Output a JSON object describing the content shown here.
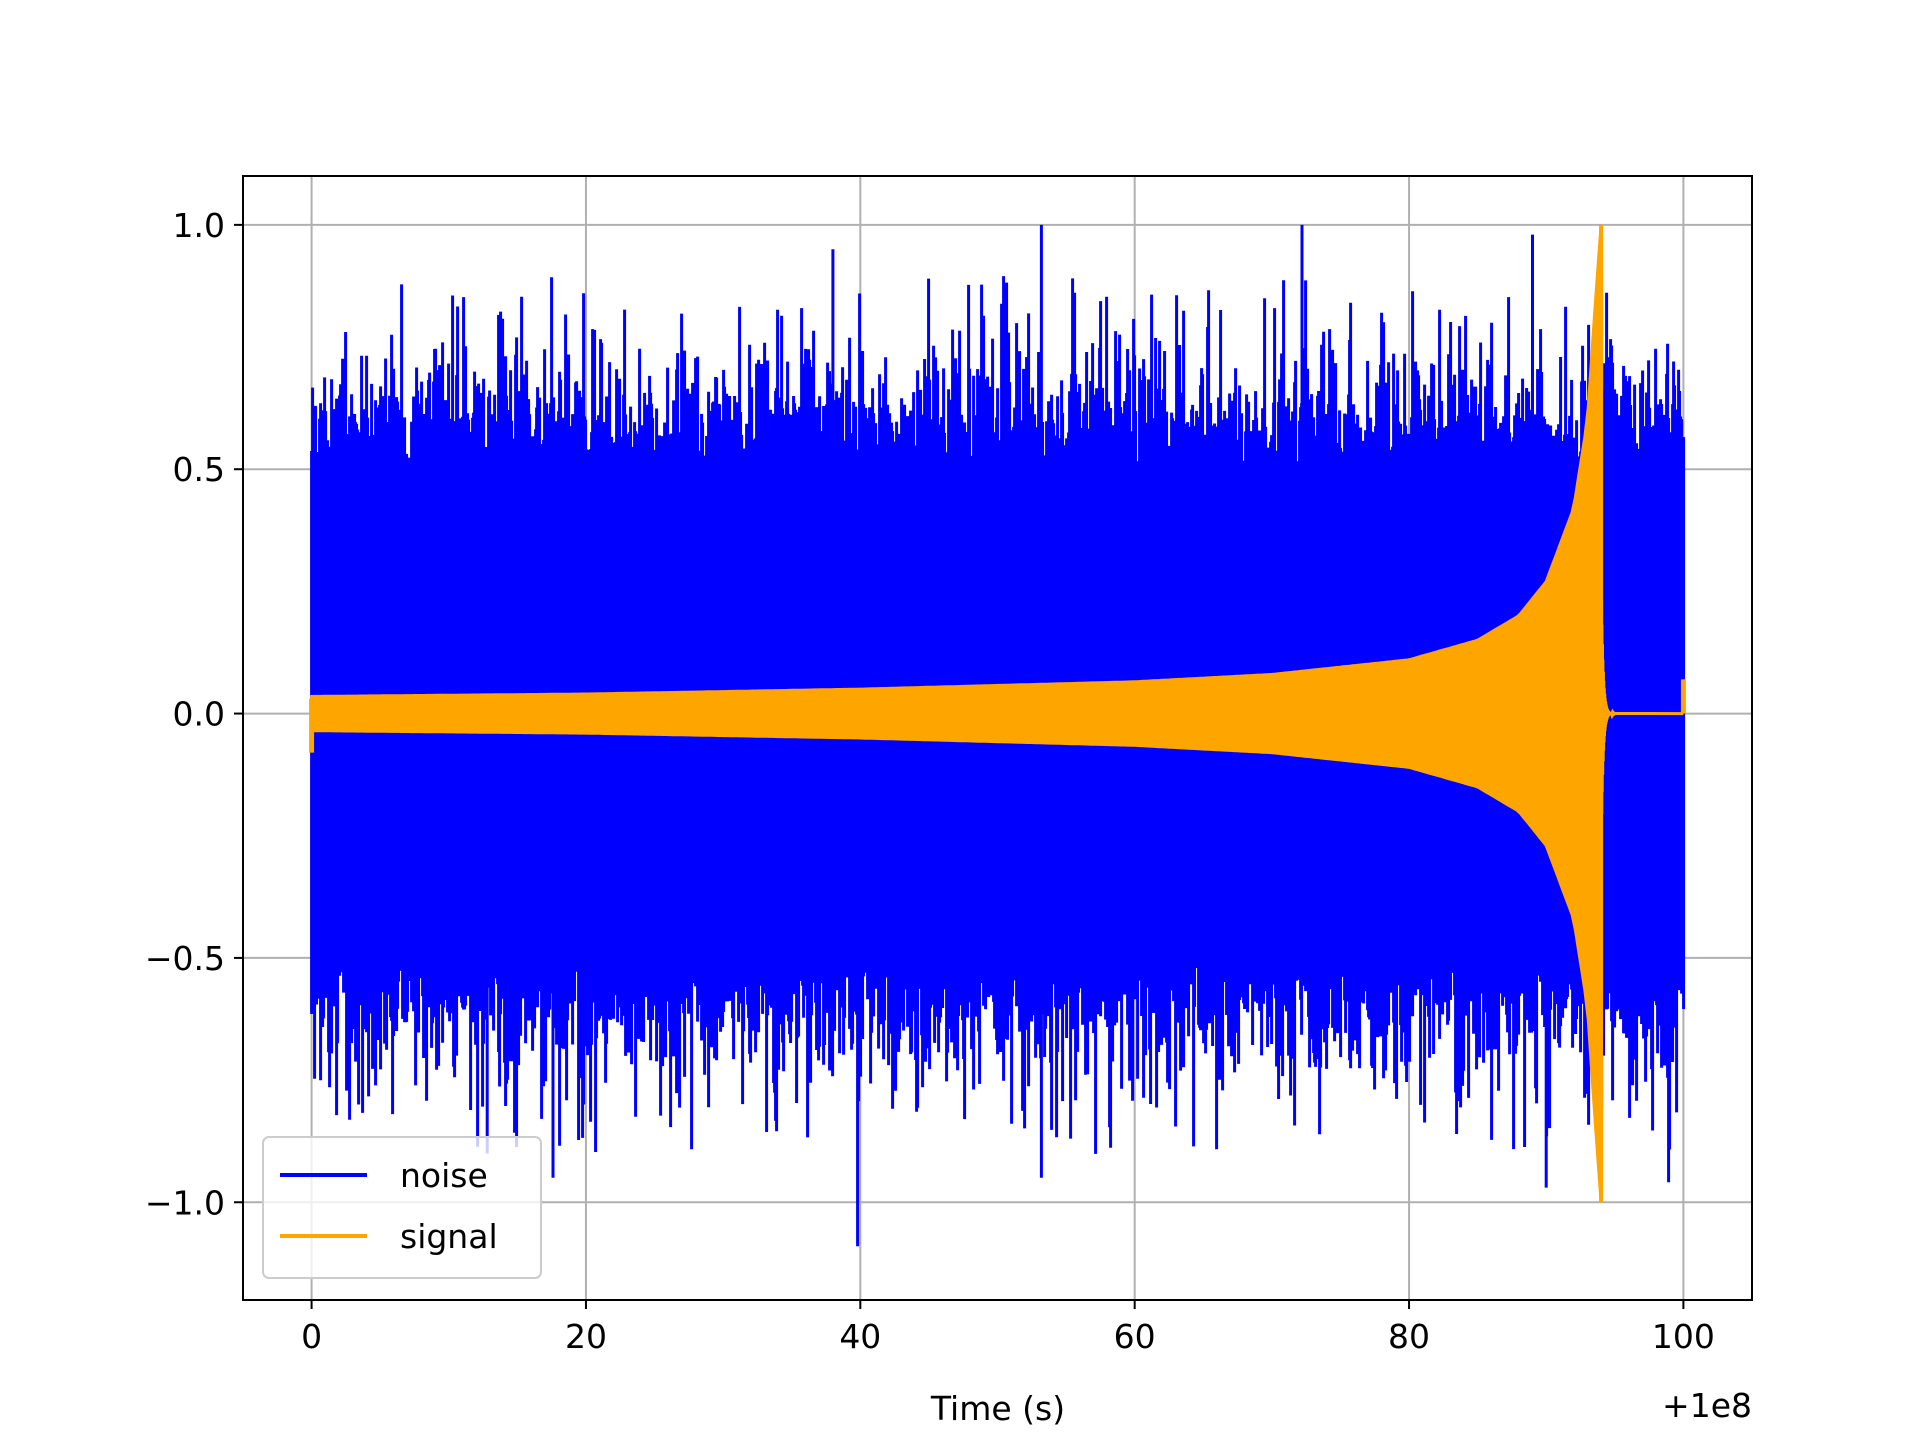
{
  "chart_data": {
    "type": "line",
    "title": "",
    "xlabel": "Time (s)",
    "ylabel": "",
    "x_offset_label": "+1e8",
    "x_offset": 100000000,
    "xlim": [
      -5,
      105
    ],
    "ylim": [
      -1.2,
      1.1
    ],
    "xticks": [
      0,
      20,
      40,
      60,
      80,
      100
    ],
    "xtick_labels": [
      "0",
      "20",
      "40",
      "60",
      "80",
      "100"
    ],
    "yticks": [
      -1.0,
      -0.5,
      0.0,
      0.5,
      1.0
    ],
    "ytick_labels": [
      "−1.0",
      "−0.5",
      "0.0",
      "0.5",
      "1.0"
    ],
    "grid": true,
    "legend_position": "lower-left",
    "series": [
      {
        "name": "noise",
        "color": "#0000ff",
        "description_points": {
          "x_range": [
            0,
            100
          ],
          "typical_envelope": [
            -0.65,
            0.65
          ],
          "max_peaks": [
            [
              53.2,
              1.0
            ],
            [
              72.2,
              1.0
            ],
            [
              89.0,
              0.98
            ],
            [
              38.0,
              0.95
            ]
          ],
          "min_peaks": [
            [
              39.8,
              -1.09
            ],
            [
              12.8,
              -0.9
            ],
            [
              17.6,
              -0.95
            ],
            [
              53.2,
              -0.95
            ],
            [
              90.0,
              -0.97
            ]
          ]
        }
      },
      {
        "name": "signal",
        "color": "#ffa500",
        "description_points": {
          "envelope_x": [
            0,
            20,
            40,
            60,
            70,
            80,
            85,
            88,
            90,
            92,
            93,
            93.6,
            94.0
          ],
          "envelope_y": [
            0.035,
            0.04,
            0.05,
            0.065,
            0.08,
            0.11,
            0.15,
            0.2,
            0.27,
            0.42,
            0.6,
            0.85,
            1.0
          ],
          "merger_x": 94.0,
          "ringdown_end_x": 95.0,
          "end_x": 100
        }
      }
    ]
  }
}
